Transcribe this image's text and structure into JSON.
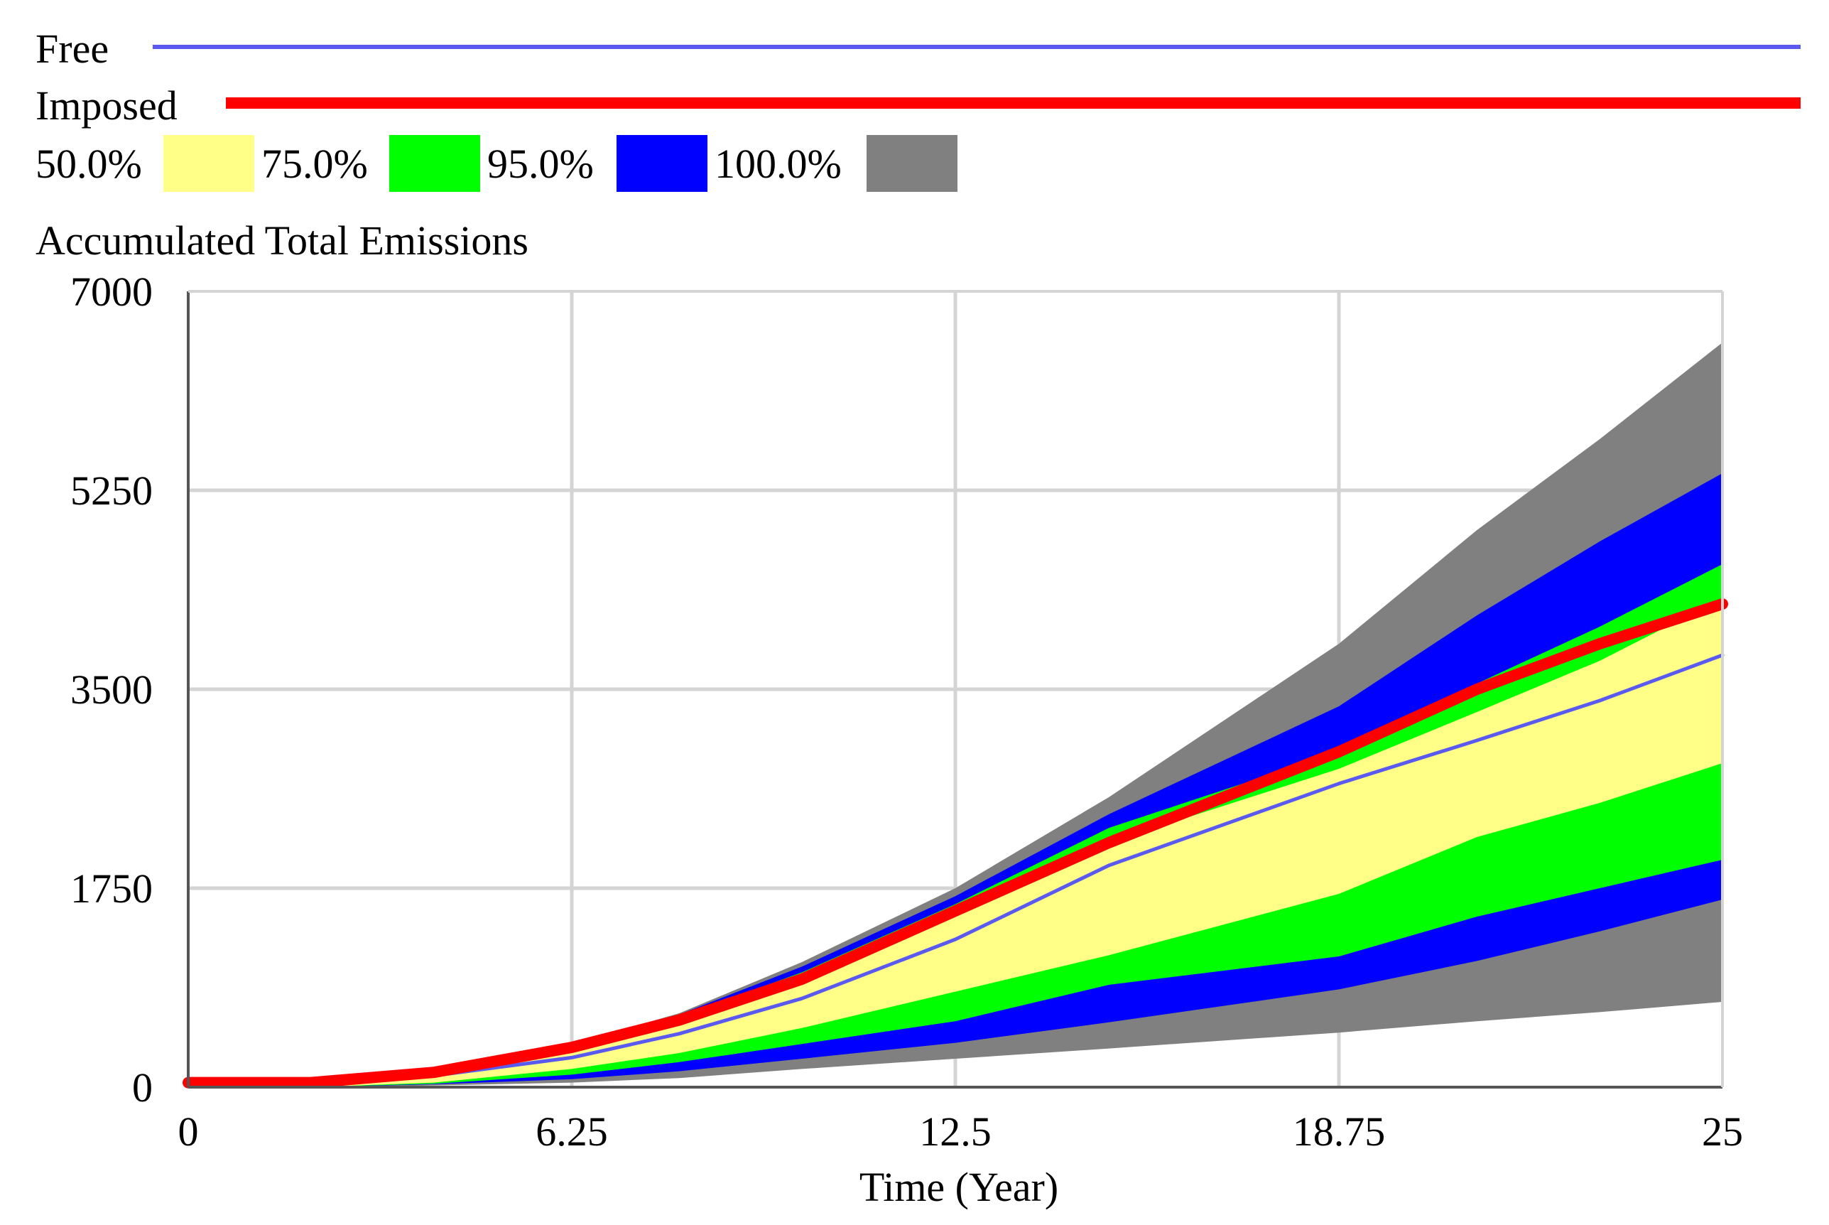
{
  "legend": {
    "free_label": "Free",
    "imposed_label": "Imposed",
    "confidence_labels": [
      "50.0%",
      "75.0%",
      "95.0%",
      "100.0%"
    ]
  },
  "colors": {
    "free": "#5a5af0",
    "imposed": "#ff0000",
    "band_50": "#ffff88",
    "band_75": "#00ff00",
    "band_95": "#0000ff",
    "band_100": "#808080",
    "grid": "#d4d4d4",
    "axis": "#555555"
  },
  "chart_data": {
    "type": "area",
    "title": "Accumulated Total Emissions",
    "xlabel": "Time (Year)",
    "ylabel": "",
    "xlim": [
      0,
      25
    ],
    "ylim": [
      0,
      7000
    ],
    "x_ticks": [
      "0",
      "6.25",
      "12.5",
      "18.75",
      "25"
    ],
    "y_ticks": [
      "0",
      "1750",
      "3500",
      "5250",
      "7000"
    ],
    "grid": true,
    "legend_position": "top",
    "x": [
      0,
      2,
      4,
      6.25,
      8,
      10,
      12.5,
      15,
      18.75,
      21,
      23,
      25
    ],
    "bands": [
      {
        "name": "100.0%",
        "lower": [
          0,
          0,
          15,
          40,
          80,
          160,
          250,
          340,
          480,
          580,
          660,
          750
        ],
        "upper": [
          0,
          15,
          120,
          380,
          650,
          1100,
          1750,
          2550,
          3900,
          4900,
          5700,
          6550
        ]
      },
      {
        "name": "95.0%",
        "lower": [
          0,
          0,
          25,
          70,
          140,
          250,
          390,
          570,
          860,
          1110,
          1370,
          1650
        ],
        "upper": [
          0,
          15,
          115,
          370,
          640,
          1060,
          1680,
          2400,
          3350,
          4150,
          4800,
          5400
        ]
      },
      {
        "name": "75.0%",
        "lower": [
          0,
          0,
          30,
          110,
          220,
          380,
          580,
          900,
          1150,
          1500,
          1750,
          2000
        ],
        "upper": [
          0,
          15,
          110,
          360,
          620,
          1010,
          1610,
          2280,
          2950,
          3550,
          4050,
          4600
        ]
      },
      {
        "name": "50.0%",
        "lower": [
          0,
          0,
          40,
          160,
          300,
          520,
          840,
          1160,
          1700,
          2200,
          2500,
          2850
        ],
        "upper": [
          0,
          15,
          100,
          340,
          590,
          960,
          1560,
          2150,
          2800,
          3300,
          3750,
          4300
        ]
      }
    ],
    "series": [
      {
        "name": "Free",
        "values": [
          40,
          40,
          100,
          260,
          470,
          780,
          1300,
          1950,
          2670,
          3050,
          3400,
          3800
        ]
      },
      {
        "name": "Imposed",
        "values": [
          40,
          40,
          130,
          350,
          590,
          950,
          1550,
          2150,
          2950,
          3500,
          3900,
          4250
        ]
      }
    ]
  }
}
